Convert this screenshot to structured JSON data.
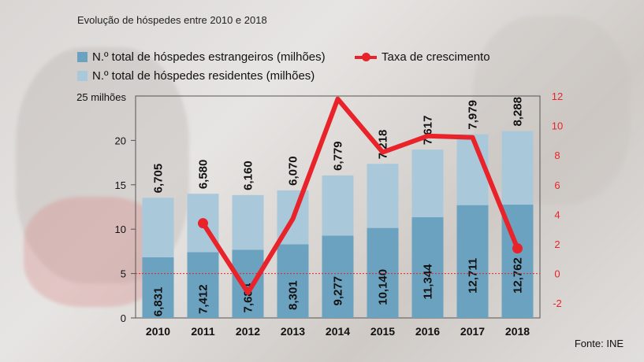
{
  "subtitle": "Evolução de hóspedes entre 2010 e 2018",
  "legend": {
    "foreign": "N.º total de hóspedes estrangeiros (milhões)",
    "resident": "N.º total de hóspedes residentes (milhões)",
    "growth": "Taxa de crescimento"
  },
  "source": "Fonte: INE",
  "colors": {
    "foreign": "#6ba2bf",
    "resident": "#a9c9db",
    "growth": "#e8232a"
  },
  "chart_data": {
    "type": "bar",
    "stacked": true,
    "categories": [
      "2010",
      "2011",
      "2012",
      "2013",
      "2014",
      "2015",
      "2016",
      "2017",
      "2018"
    ],
    "series": [
      {
        "name": "N.º total de hóspedes estrangeiros (milhões)",
        "values": [
          6.831,
          7.412,
          7.684,
          8.301,
          9.277,
          10.14,
          11.344,
          12.711,
          12.762
        ],
        "labels": [
          "6,831",
          "7,412",
          "7,684",
          "8,301",
          "9,277",
          "10,140",
          "11,344",
          "12,711",
          "12,762"
        ]
      },
      {
        "name": "N.º total de hóspedes residentes (milhões)",
        "values": [
          6.705,
          6.58,
          6.16,
          6.07,
          6.779,
          7.218,
          7.617,
          7.979,
          8.288
        ],
        "labels": [
          "6,705",
          "6,580",
          "6,160",
          "6,070",
          "6,779",
          "7,218",
          "7,617",
          "7,979",
          "8,288"
        ]
      },
      {
        "name": "Taxa de crescimento",
        "axis": "right",
        "type": "line",
        "values": [
          null,
          3.4,
          -1.3,
          3.7,
          11.8,
          8.2,
          9.3,
          9.2,
          1.7
        ]
      }
    ],
    "y_left": {
      "ticks": [
        0,
        5,
        10,
        15,
        20
      ],
      "top_label": "25 milhões",
      "ylim": [
        0,
        25
      ]
    },
    "y_right": {
      "ticks": [
        -2,
        0,
        2,
        4,
        6,
        8,
        10,
        12
      ],
      "ylim": [
        -3,
        12
      ]
    },
    "reference_line": 5
  }
}
